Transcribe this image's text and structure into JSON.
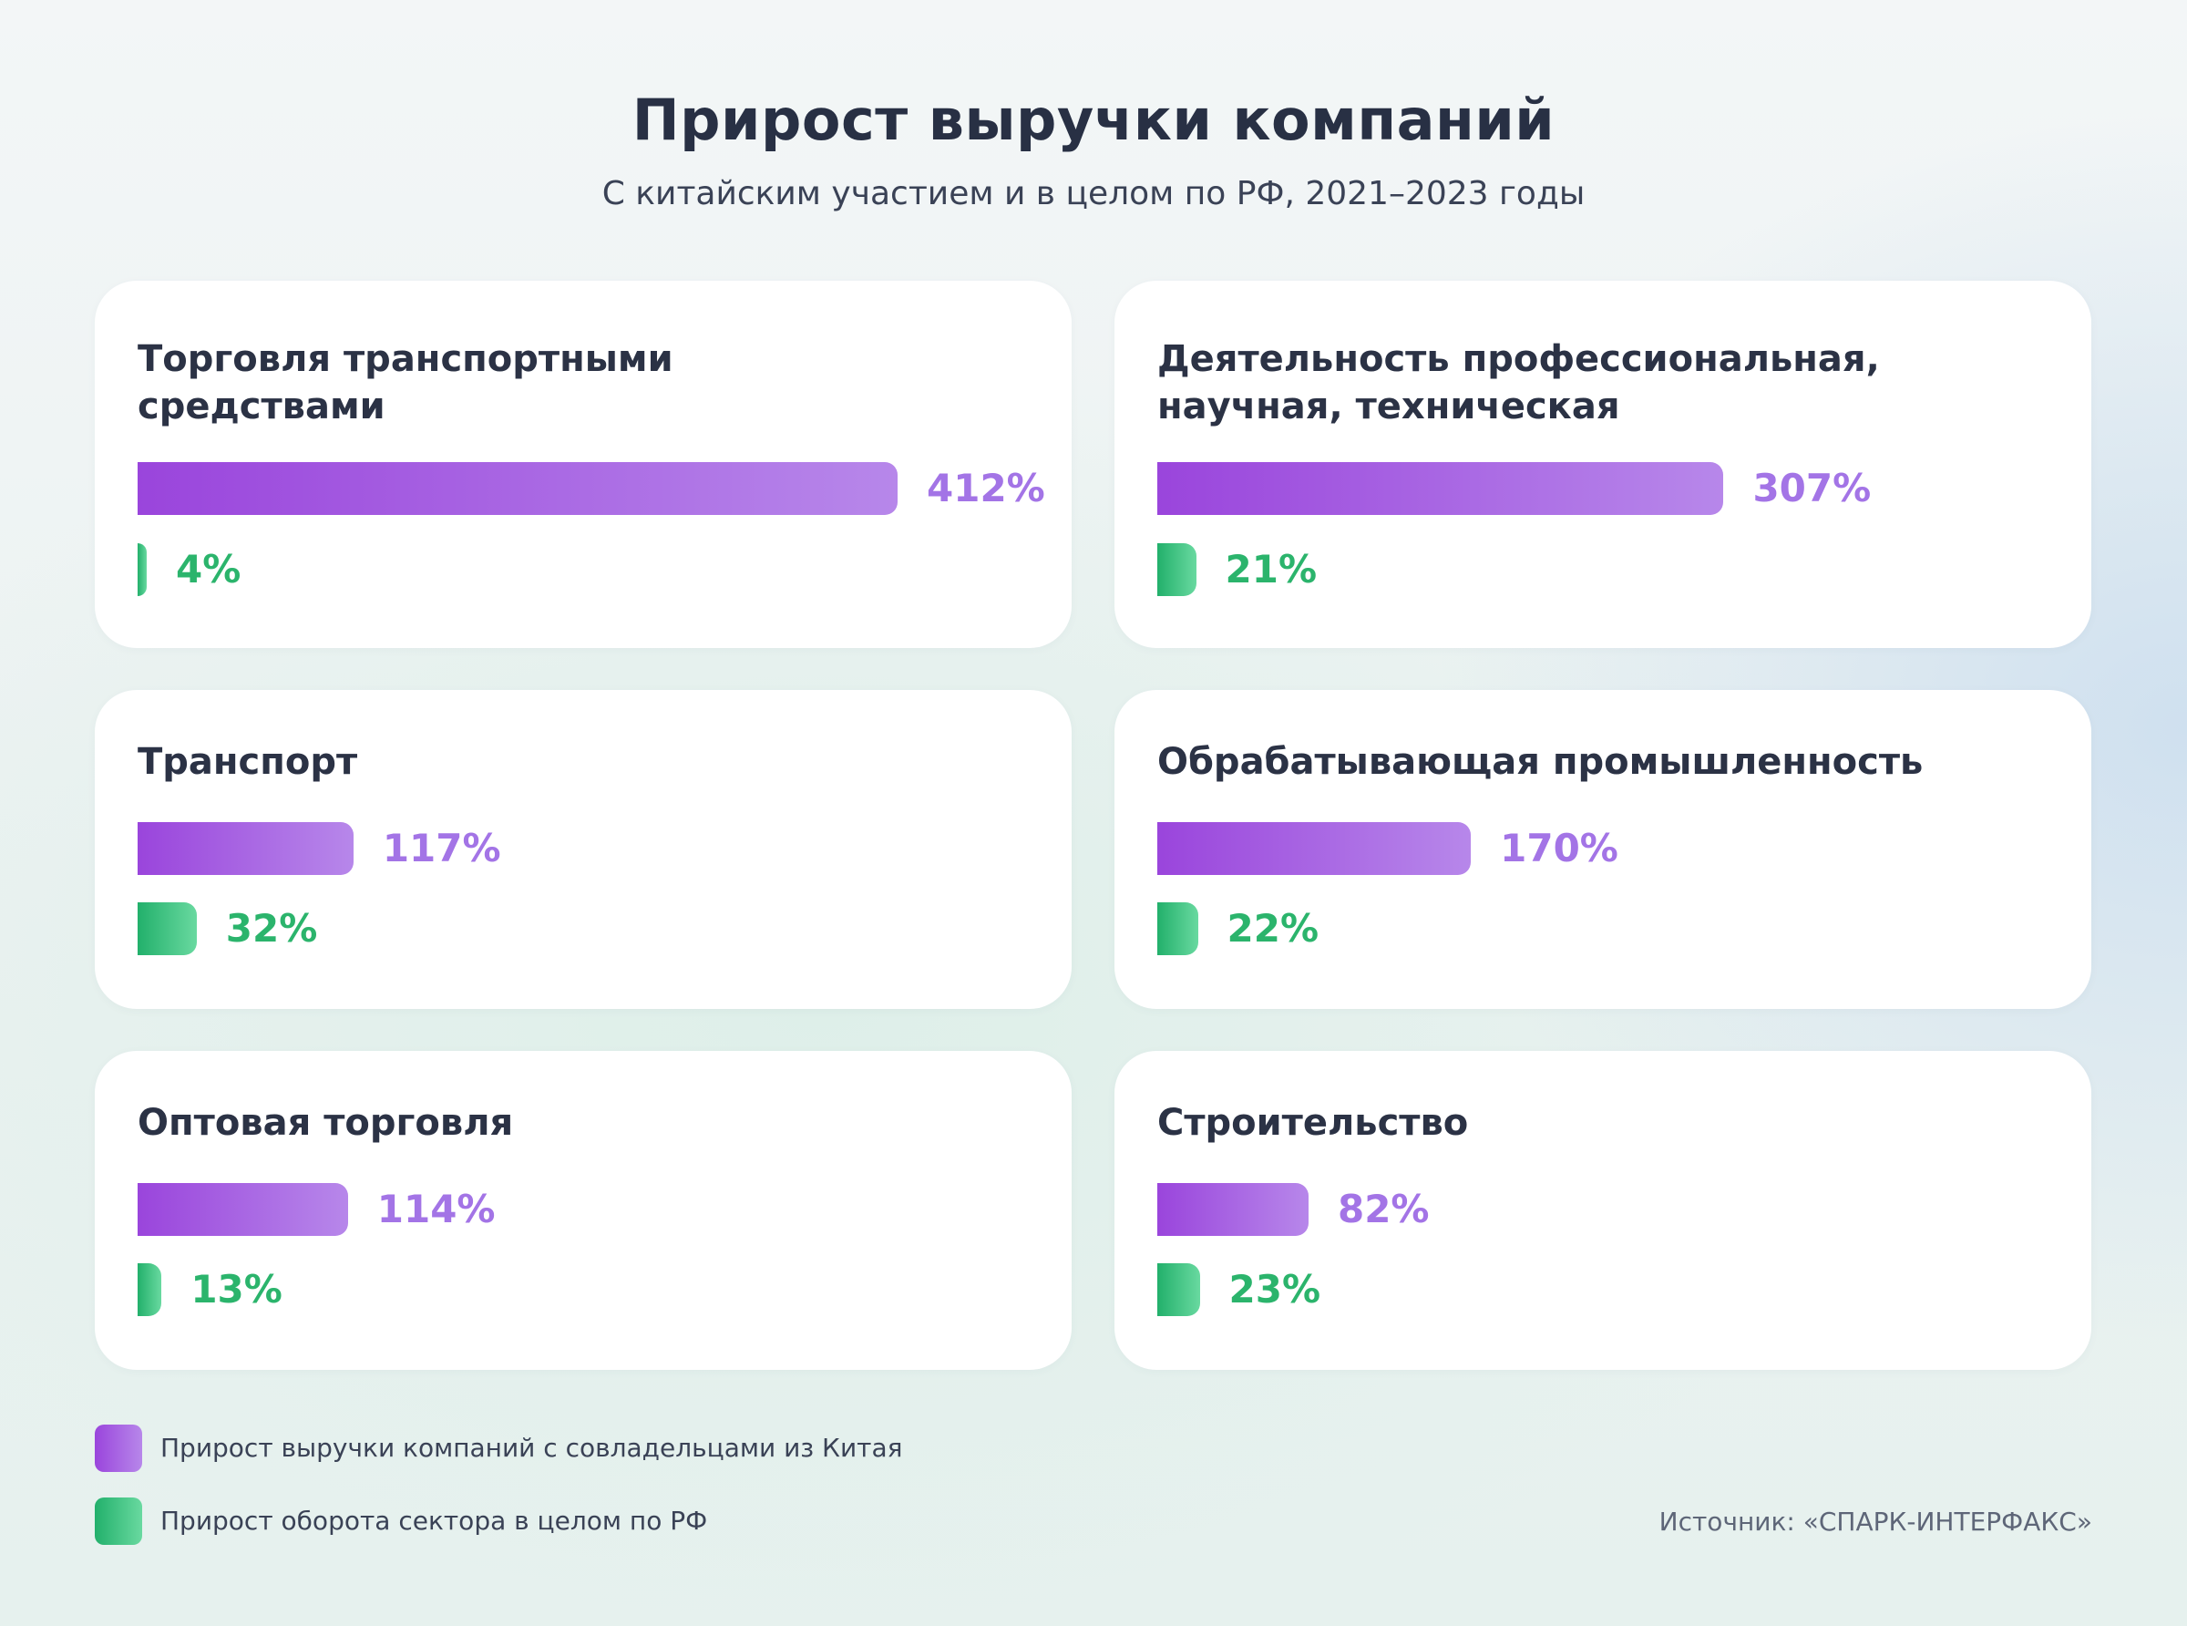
{
  "title": "Прирост выручки компаний",
  "subtitle": "С китайским участием и в целом по РФ, 2021–2023 годы",
  "legend": {
    "china": "Прирост выручки компаний с совладельцами из Китая",
    "russia": "Прирост оборота сектора в целом по РФ"
  },
  "source": "Источник: «СПАРК-ИНТЕРФАКС»",
  "colors": {
    "china": "#9a45dc",
    "russia": "#22b06b"
  },
  "chart_data": {
    "type": "bar",
    "title": "Прирост выручки компаний",
    "subtitle": "С китайским участием и в целом по РФ, 2021–2023 годы",
    "unit": "%",
    "categories": [
      "Торговля транспортными средствами",
      "Деятельность профессиональная, научная, техническая",
      "Транспорт",
      "Обрабатывающая промышленность",
      "Оптовая торговля",
      "Строительство"
    ],
    "series": [
      {
        "name": "Прирост выручки компаний с совладельцами из Китая",
        "values": [
          412,
          307,
          117,
          170,
          114,
          82
        ]
      },
      {
        "name": "Прирост оборота сектора в целом по РФ",
        "values": [
          4,
          21,
          32,
          22,
          13,
          23
        ]
      }
    ],
    "labels": [
      [
        "412%",
        "4%"
      ],
      [
        "307%",
        "21%"
      ],
      [
        "117%",
        "32%"
      ],
      [
        "170%",
        "22%"
      ],
      [
        "114%",
        "13%"
      ],
      [
        "82%",
        "23%"
      ]
    ]
  }
}
